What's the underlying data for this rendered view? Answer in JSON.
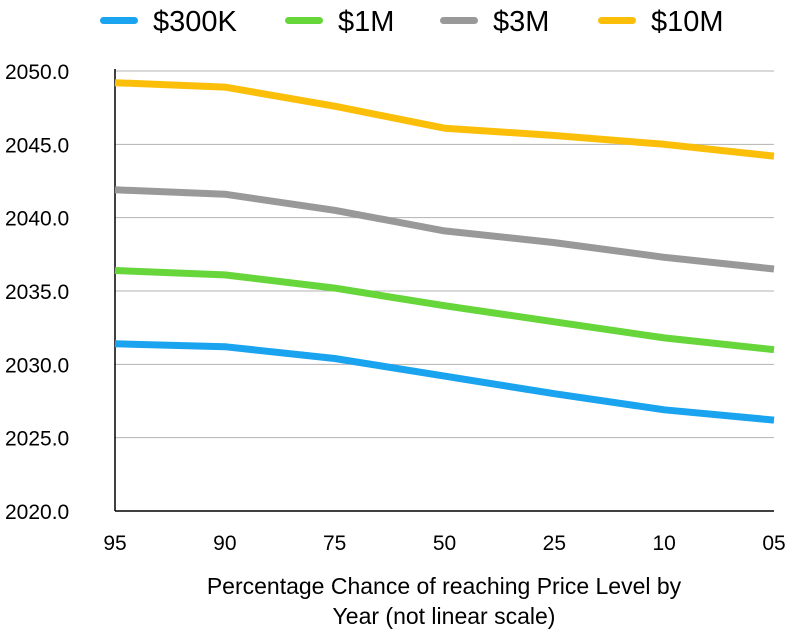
{
  "chart_data": {
    "type": "line",
    "xlabel": "Percentage Chance of reaching Price Level by Year (not linear scale)",
    "xlabel_lines": [
      "Percentage Chance of reaching Price Level by",
      "Year (not linear scale)"
    ],
    "ylabel": "",
    "categories": [
      "95",
      "90",
      "75",
      "50",
      "25",
      "10",
      "05"
    ],
    "y_ticks": [
      "2050.0",
      "2045.0",
      "2040.0",
      "2035.0",
      "2030.0",
      "2025.0",
      "2020.0"
    ],
    "ylim": [
      2020,
      2050
    ],
    "grid": "horizontal",
    "legend_position": "top",
    "series": [
      {
        "name": "$300K",
        "color": "#1aa3ef",
        "values": [
          2031.4,
          2031.2,
          2030.4,
          2029.2,
          2028.0,
          2026.9,
          2026.2
        ]
      },
      {
        "name": "$1M",
        "color": "#66d63a",
        "values": [
          2036.4,
          2036.1,
          2035.2,
          2034.0,
          2032.9,
          2031.8,
          2031.0
        ]
      },
      {
        "name": "$3M",
        "color": "#999999",
        "values": [
          2041.9,
          2041.6,
          2040.5,
          2039.1,
          2038.3,
          2037.3,
          2036.5
        ]
      },
      {
        "name": "$10M",
        "color": "#fbbf0a",
        "values": [
          2049.2,
          2048.9,
          2047.6,
          2046.1,
          2045.6,
          2045.0,
          2044.2
        ]
      }
    ]
  }
}
